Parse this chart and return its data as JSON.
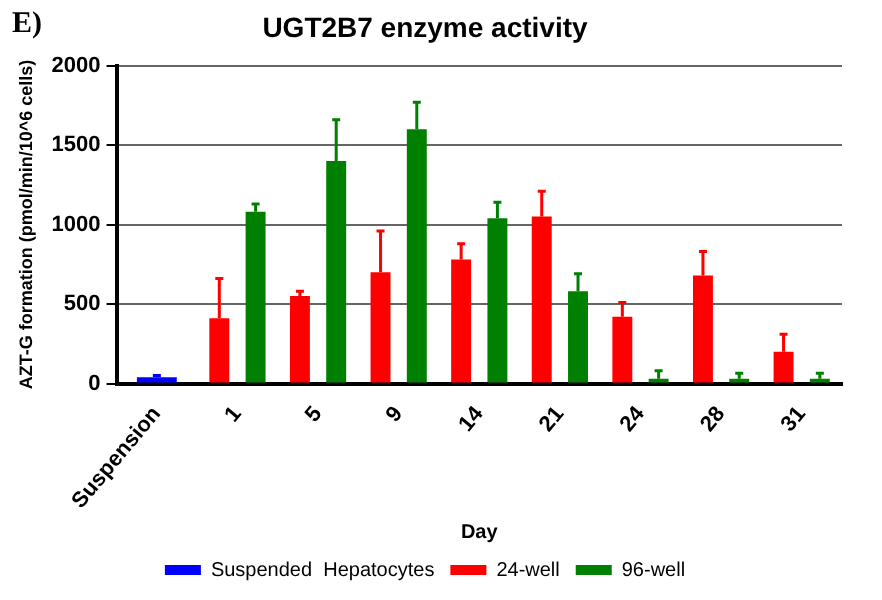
{
  "chart_data": {
    "type": "bar",
    "title": "UGT2B7 enzyme activity",
    "xlabel": "Day",
    "ylabel": "AZT-G formation (pmol/min/10^6 cells)",
    "categories": [
      "Suspension",
      "1",
      "5",
      "9",
      "14",
      "21",
      "24",
      "28",
      "31"
    ],
    "series": [
      {
        "name": "Suspended  Hepatocytes",
        "color": "#0000ff",
        "values": [
          40,
          null,
          null,
          null,
          null,
          null,
          null,
          null,
          null
        ],
        "errors": [
          [
            40,
            50
          ],
          null,
          null,
          null,
          null,
          null,
          null,
          null,
          null
        ]
      },
      {
        "name": "24-well",
        "color": "#ff0000",
        "values": [
          null,
          410,
          550,
          700,
          780,
          1050,
          420,
          680,
          200
        ],
        "errors": [
          null,
          [
            410,
            660
          ],
          [
            550,
            580
          ],
          [
            700,
            960
          ],
          [
            780,
            880
          ],
          [
            1050,
            1210
          ],
          [
            420,
            510
          ],
          [
            680,
            830
          ],
          [
            200,
            310
          ]
        ]
      },
      {
        "name": "96-well",
        "color": "#008000",
        "values": [
          null,
          1080,
          1400,
          1600,
          1040,
          580,
          30,
          30,
          30
        ],
        "errors": [
          null,
          [
            1080,
            1130
          ],
          [
            1400,
            1660
          ],
          [
            1600,
            1770
          ],
          [
            1040,
            1140
          ],
          [
            580,
            690
          ],
          [
            30,
            80
          ],
          [
            30,
            65
          ],
          [
            30,
            65
          ]
        ]
      }
    ],
    "ylim": [
      0,
      2000
    ],
    "yticks": [
      0,
      500,
      1000,
      1500,
      2000
    ],
    "grid": "y",
    "legend": "bottom",
    "annotations": [
      "E)"
    ]
  }
}
